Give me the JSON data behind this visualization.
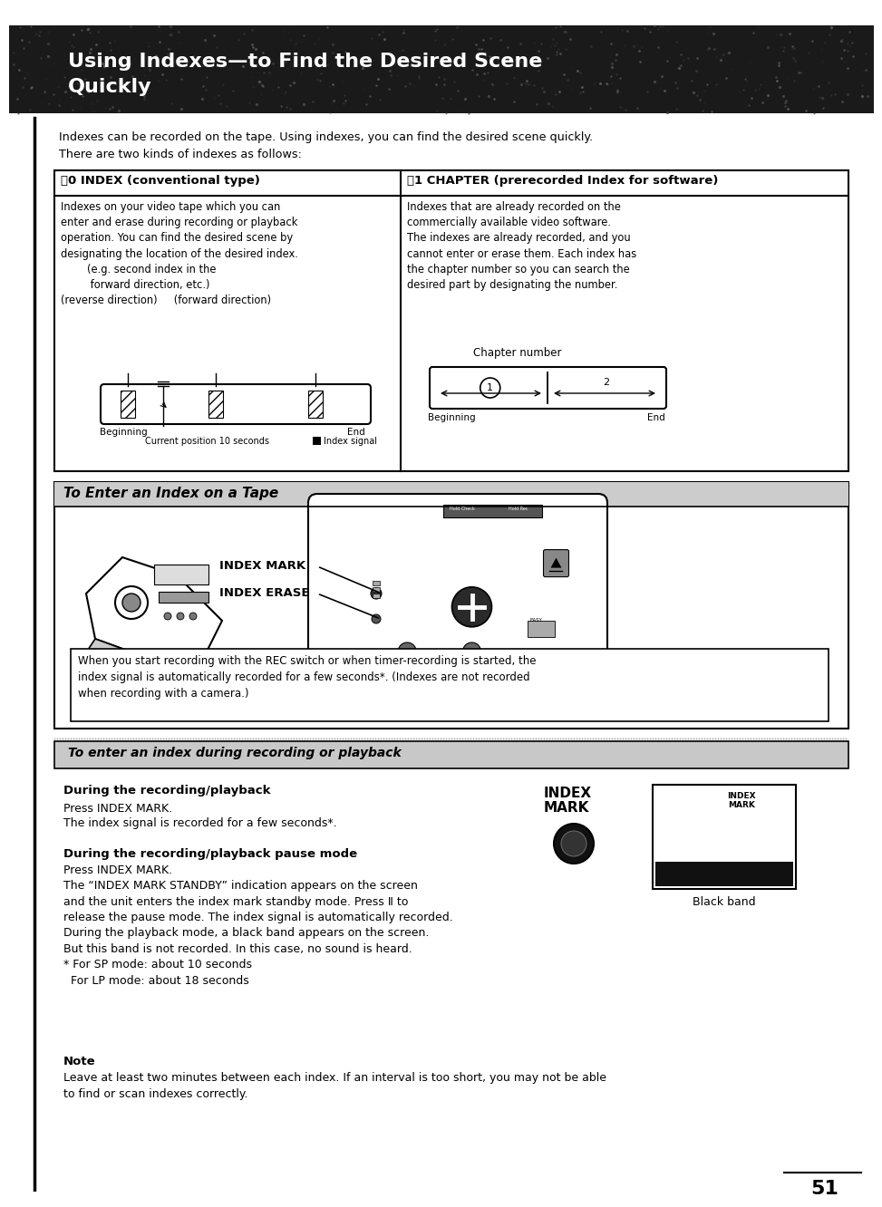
{
  "title_line1": "Using Indexes—to Find the Desired Scene",
  "title_line2": "Quickly",
  "page_bg": "#ffffff",
  "page_number": "51",
  "intro_text": "Indexes can be recorded on the tape. Using indexes, you can find the desired scene quickly.\nThere are two kinds of indexes as follows:",
  "col_a_header": "⑀0 INDEX (conventional type)",
  "col_b_header": "⑂1 CHAPTER (prerecorded Index for software)",
  "col_a_body": "Indexes on your video tape which you can\nenter and erase during recording or playback\noperation. You can find the desired scene by\ndesignating the location of the desired index.\n        (e.g. second index in the\n         forward direction, etc.)\n(reverse direction)     (forward direction)",
  "col_b_body": "Indexes that are already recorded on the\ncommercially available video software.\nThe indexes are already recorded, and you\ncannot enter or erase them. Each index has\nthe chapter number so you can search the\ndesired part by designating the number.",
  "chapter_number_label": "Chapter number",
  "ch_num_1": "1",
  "ch_num_2": "2",
  "beginning": "Beginning",
  "end": "End",
  "tape_beginning": "Beginning",
  "tape_end": "End",
  "tape_cp_label": "Current position 10 seconds",
  "tape_idx_label": "Index signal",
  "sec2_title": "To Enter an Index on a Tape",
  "index_mark_label": "INDEX MARK",
  "index_erase_label": "INDEX ERASE",
  "note_box_text": "When you start recording with the REC switch or when timer-recording is started, the\nindex signal is automatically recorded for a few seconds*. (Indexes are not recorded\nwhen recording with a camera.)",
  "sec3_title": "To enter an index during recording or playback",
  "during_rec_header": "During the recording/playback",
  "press_index_mark": "Press INDEX MARK.",
  "rec_text2": "The index signal is recorded for a few seconds*.",
  "during_pause_header": "During the recording/playback pause mode",
  "press_index_mark2": "Press INDEX MARK.",
  "pause_body": "The “INDEX MARK STANDBY” indication appears on the screen\nand the unit enters the index mark standby mode. Press Ⅱ to\nrelease the pause mode. The index signal is automatically recorded.\nDuring the playback mode, a black band appears on the screen.\nBut this band is not recorded. In this case, no sound is heard.\n* For SP mode: about 10 seconds\n  For LP mode: about 18 seconds",
  "note_header": "Note",
  "note_body": "Leave at least two minutes between each index. If an interval is too short, you may not be able\nto find or scan indexes correctly.",
  "index_mark_btn_label": "INDEX\nMARK",
  "black_band_label": "Black band",
  "index_mark_box_label": "INDEX\nMARK"
}
